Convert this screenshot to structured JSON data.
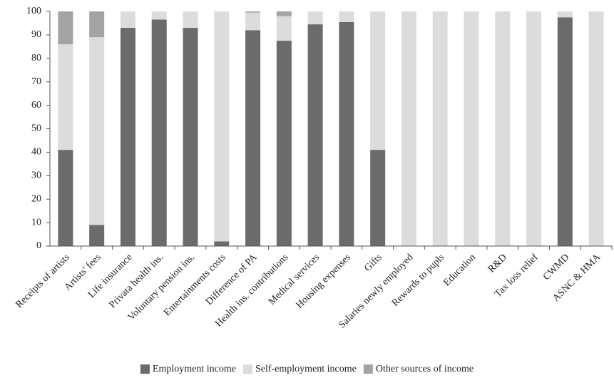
{
  "chart_data": {
    "type": "stacked-bar",
    "categories": [
      "Receipts of artists",
      "Artists' fees",
      "Life insurance",
      "Privata health ins.",
      "Voluntary pension ins.",
      "Entertainments costs",
      "Difference of PA",
      "Health ins. contributions",
      "Medical services",
      "Housing expenses",
      "Gifts",
      "Salaries newly employed",
      "Rewards to pupls",
      "Education",
      "R&D",
      "Tax loss relief",
      "CWMD",
      "ASNC & HMA"
    ],
    "series": [
      {
        "name": "Employment income",
        "color": "#6b6b6b",
        "values": [
          41,
          9,
          93,
          96.5,
          93,
          2,
          92,
          87.5,
          94.5,
          95.5,
          41,
          0,
          0,
          0,
          0,
          0,
          97.5,
          0
        ]
      },
      {
        "name": "Self-employment income",
        "color": "#dcdcdc",
        "values": [
          45,
          80,
          7,
          3.5,
          7,
          98,
          7.5,
          10.5,
          5.5,
          4.5,
          59,
          100,
          100,
          100,
          100,
          100,
          2.5,
          100
        ]
      },
      {
        "name": "Other sources of income",
        "color": "#a3a3a3",
        "values": [
          14,
          11,
          0,
          0,
          0,
          0,
          0.5,
          2,
          0,
          0,
          0,
          0,
          0,
          0,
          0,
          0,
          0,
          0
        ]
      }
    ],
    "ylim": [
      0,
      100
    ],
    "yticks": [
      0,
      10,
      20,
      30,
      40,
      50,
      60,
      70,
      80,
      90,
      100
    ],
    "grid": false,
    "legend": "bottom"
  }
}
